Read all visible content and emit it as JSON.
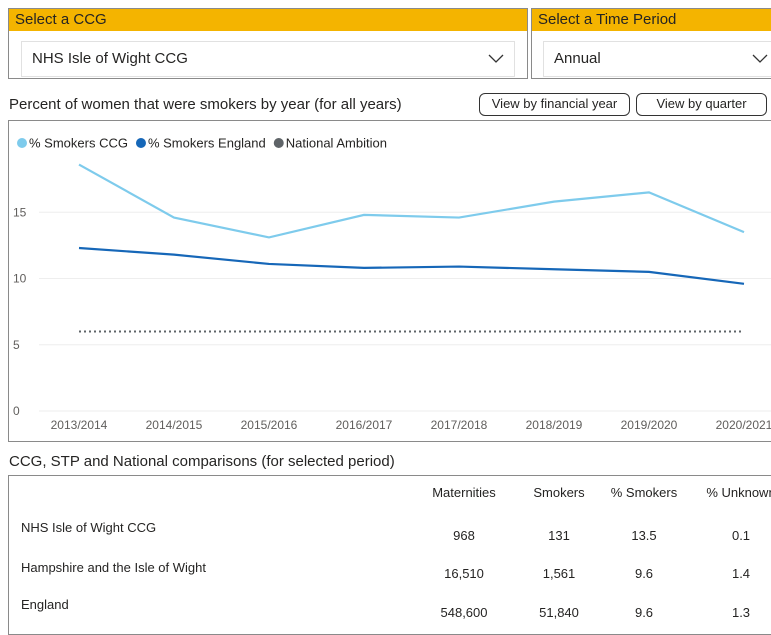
{
  "ccg_select": {
    "label": "Select a CCG",
    "value": "NHS Isle of Wight CCG"
  },
  "period_select": {
    "label": "Select a Time Period",
    "value": "Annual"
  },
  "buttons": [
    "View by financial year",
    "View by quarter"
  ],
  "chart_data": {
    "type": "line",
    "title": "Percent of women that were smokers by year (for all years)",
    "categories": [
      "2013/2014",
      "2014/2015",
      "2015/2016",
      "2016/2017",
      "2017/2018",
      "2018/2019",
      "2019/2020",
      "2020/2021"
    ],
    "series": [
      {
        "name": "% Smokers CCG",
        "color": "#7ecbec",
        "values": [
          18.6,
          14.6,
          13.1,
          14.8,
          14.6,
          15.8,
          16.5,
          13.5
        ]
      },
      {
        "name": "% Smokers England",
        "color": "#1667b8",
        "values": [
          12.3,
          11.8,
          11.1,
          10.8,
          10.9,
          10.7,
          10.5,
          9.6
        ]
      },
      {
        "name": "National Ambition",
        "color": "#5f6468",
        "values": [
          6,
          6,
          6,
          6,
          6,
          6,
          6,
          6
        ]
      }
    ],
    "ylim": [
      0,
      20
    ],
    "yticks": [
      0,
      5,
      10,
      15
    ],
    "grid": true,
    "legend": "top-left"
  },
  "table": {
    "title": "CCG, STP and National comparisons (for selected period)",
    "columns": [
      "Maternities",
      "Smokers",
      "% Smokers",
      "% Unknown"
    ],
    "rows": [
      [
        "NHS Isle of Wight CCG",
        "968",
        "131",
        "13.5",
        "0.1"
      ],
      [
        "Hampshire and the Isle of Wight",
        "16,510",
        "1,561",
        "9.6",
        "1.4"
      ],
      [
        "England",
        "548,600",
        "51,840",
        "9.6",
        "1.3"
      ]
    ]
  }
}
